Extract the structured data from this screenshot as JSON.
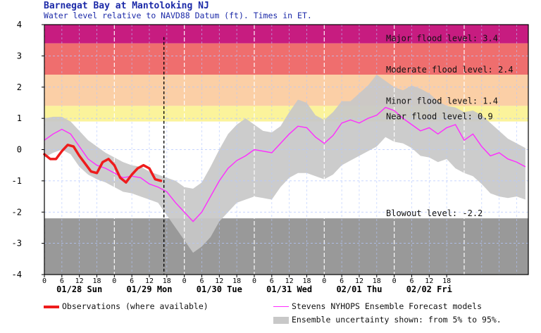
{
  "header": {
    "title": "Barnegat Bay at Mantoloking NJ",
    "subtitle": "Water level relative to NAVD88 Datum (ft). Times in ET."
  },
  "legend": {
    "observations": "Observations (where available)",
    "forecast": "Stevens NYHOPS Ensemble Forecast models",
    "uncertainty": "Ensemble uncertainty shown: from 5% to 95%."
  },
  "chart_data": {
    "type": "line",
    "ylim": [
      -4,
      4
    ],
    "y_ticks": [
      "4",
      "3",
      "2",
      "1",
      "0",
      "-1",
      "-2",
      "-3",
      "-4"
    ],
    "x_range_hours": [
      0,
      166
    ],
    "x_hour_ticks": [
      0,
      6,
      12,
      18,
      0,
      6,
      12,
      18,
      0,
      6,
      12,
      18,
      0,
      6,
      12,
      18,
      0,
      6,
      12,
      18,
      0,
      6,
      12,
      18
    ],
    "day_labels": [
      "01/28 Sun",
      "01/29 Mon",
      "01/30 Tue",
      "01/31 Wed",
      "02/01 Thu",
      "02/02 Fri"
    ],
    "now_marker_hours": 41,
    "grid": true,
    "colors": {
      "major": "#c71c80",
      "moderate": "#ef6e6e",
      "minor": "#fbcfa6",
      "near": "#fbf39b",
      "blowout": "#999999",
      "observations": "#ee1c1c",
      "forecast": "#ff2bff",
      "uncertainty": "#c8c8c8"
    },
    "thresholds": [
      {
        "name": "Major flood level",
        "value": 3.4,
        "label": "Major flood level: 3.4"
      },
      {
        "name": "Moderate flood level",
        "value": 2.4,
        "label": "Moderate flood level: 2.4"
      },
      {
        "name": "Minor flood level",
        "value": 1.4,
        "label": "Minor flood level: 1.4"
      },
      {
        "name": "Near flood level",
        "value": 0.9,
        "label": "Near flood level: 0.9"
      },
      {
        "name": "Blowout level",
        "value": -2.2,
        "label": "Blowout level: -2.2"
      }
    ],
    "series": [
      {
        "name": "Observations (where available)",
        "x": [
          0,
          2,
          4,
          6,
          8,
          10,
          12,
          14,
          16,
          18,
          20,
          22,
          24,
          26,
          28,
          30,
          32,
          34,
          36,
          38,
          40
        ],
        "y": [
          -0.15,
          -0.3,
          -0.3,
          -0.05,
          0.15,
          0.1,
          -0.2,
          -0.45,
          -0.7,
          -0.75,
          -0.4,
          -0.3,
          -0.5,
          -0.9,
          -1.05,
          -0.8,
          -0.6,
          -0.5,
          -0.6,
          -0.95,
          -1.0
        ]
      },
      {
        "name": "Stevens NYHOPS Ensemble Forecast models",
        "x": [
          0,
          3,
          6,
          9,
          12,
          15,
          18,
          21,
          24,
          27,
          30,
          33,
          36,
          39,
          42,
          45,
          48,
          51,
          54,
          57,
          60,
          63,
          66,
          69,
          72,
          75,
          78,
          81,
          84,
          87,
          90,
          93,
          96,
          99,
          102,
          105,
          108,
          111,
          114,
          117,
          120,
          123,
          126,
          129,
          132,
          135,
          138,
          141,
          144,
          147,
          150,
          153,
          156,
          159,
          162,
          165
        ],
        "y": [
          0.3,
          0.5,
          0.65,
          0.5,
          0.1,
          -0.3,
          -0.5,
          -0.6,
          -0.75,
          -0.9,
          -0.85,
          -0.9,
          -1.1,
          -1.2,
          -1.35,
          -1.7,
          -2.0,
          -2.3,
          -2.0,
          -1.5,
          -1.0,
          -0.6,
          -0.35,
          -0.2,
          0.0,
          -0.05,
          -0.1,
          0.2,
          0.5,
          0.75,
          0.7,
          0.4,
          0.2,
          0.45,
          0.85,
          0.95,
          0.85,
          1.0,
          1.1,
          1.35,
          1.25,
          1.0,
          0.8,
          0.6,
          0.7,
          0.5,
          0.7,
          0.8,
          0.3,
          0.5,
          0.1,
          -0.2,
          -0.1,
          -0.3,
          -0.4,
          -0.55
        ]
      },
      {
        "name": "Ensemble uncertainty 95%",
        "x": [
          0,
          3,
          6,
          9,
          12,
          15,
          18,
          21,
          24,
          27,
          30,
          33,
          36,
          39,
          42,
          45,
          48,
          51,
          54,
          57,
          60,
          63,
          66,
          69,
          72,
          75,
          78,
          81,
          84,
          87,
          90,
          93,
          96,
          99,
          102,
          105,
          108,
          111,
          114,
          117,
          120,
          123,
          126,
          129,
          132,
          135,
          138,
          141,
          144,
          147,
          150,
          153,
          156,
          159,
          162,
          165
        ],
        "y": [
          1.0,
          1.05,
          1.05,
          0.9,
          0.6,
          0.3,
          0.1,
          -0.1,
          -0.25,
          -0.4,
          -0.5,
          -0.55,
          -0.7,
          -0.8,
          -0.9,
          -1.0,
          -1.2,
          -1.25,
          -1.05,
          -0.55,
          0.0,
          0.5,
          0.8,
          1.0,
          0.8,
          0.6,
          0.55,
          0.75,
          1.2,
          1.6,
          1.5,
          1.1,
          0.95,
          1.2,
          1.55,
          1.55,
          1.8,
          2.05,
          2.4,
          2.2,
          2.0,
          1.9,
          2.05,
          1.95,
          1.8,
          1.55,
          1.4,
          1.35,
          1.2,
          1.25,
          1.1,
          0.85,
          0.6,
          0.35,
          0.2,
          0.05
        ]
      },
      {
        "name": "Ensemble uncertainty 5%",
        "x": [
          0,
          3,
          6,
          9,
          12,
          15,
          18,
          21,
          24,
          27,
          30,
          33,
          36,
          39,
          42,
          45,
          48,
          51,
          54,
          57,
          60,
          63,
          66,
          69,
          72,
          75,
          78,
          81,
          84,
          87,
          90,
          93,
          96,
          99,
          102,
          105,
          108,
          111,
          114,
          117,
          120,
          123,
          126,
          129,
          132,
          135,
          138,
          141,
          144,
          147,
          150,
          153,
          156,
          159,
          162,
          165
        ],
        "y": [
          -0.25,
          -0.1,
          0.0,
          -0.15,
          -0.55,
          -0.8,
          -0.95,
          -1.05,
          -1.2,
          -1.35,
          -1.4,
          -1.5,
          -1.6,
          -1.7,
          -2.1,
          -2.5,
          -2.9,
          -3.3,
          -3.1,
          -2.8,
          -2.3,
          -2.0,
          -1.7,
          -1.6,
          -1.5,
          -1.55,
          -1.6,
          -1.2,
          -0.9,
          -0.75,
          -0.75,
          -0.85,
          -0.95,
          -0.8,
          -0.5,
          -0.35,
          -0.2,
          -0.05,
          0.1,
          0.4,
          0.25,
          0.2,
          0.05,
          -0.2,
          -0.25,
          -0.4,
          -0.3,
          -0.6,
          -0.75,
          -0.85,
          -1.1,
          -1.4,
          -1.5,
          -1.55,
          -1.5,
          -1.6
        ]
      }
    ]
  }
}
